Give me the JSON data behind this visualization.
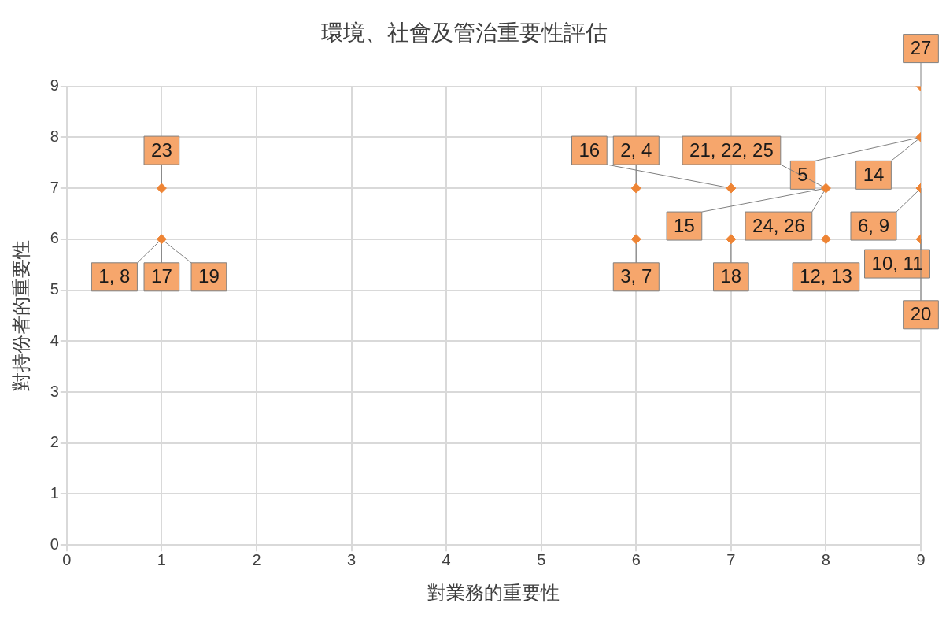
{
  "chart_data": {
    "type": "scatter",
    "title": "環境、社會及管治重要性評估",
    "xlabel": "對業務的重要性",
    "ylabel": "對持份者的重要性",
    "series": [
      {
        "color": "#ee8434",
        "x": [
          1,
          1,
          6,
          6,
          7,
          7,
          8,
          8,
          9,
          9,
          9,
          9
        ],
        "values": [
          7,
          6,
          7,
          6,
          7,
          6,
          7,
          6,
          9,
          8,
          7,
          6
        ]
      }
    ],
    "xlim": [
      0,
      9
    ],
    "ylim": [
      0,
      9
    ],
    "xticks": [
      0,
      1,
      2,
      3,
      4,
      5,
      6,
      7,
      8,
      9
    ],
    "yticks": [
      0,
      1,
      2,
      3,
      4,
      5,
      6,
      7,
      8,
      9
    ],
    "grid": true,
    "legend": false,
    "marker": "diamond",
    "annotations": [
      {
        "text": "27",
        "x": 9,
        "y": 9
      },
      {
        "text": "23",
        "x": 1,
        "y": 7
      },
      {
        "text": "14",
        "x": 9,
        "y": 8
      },
      {
        "text": "5",
        "x": 9,
        "y": 8
      },
      {
        "text": "21, 22, 25",
        "x": 8,
        "y": 7
      },
      {
        "text": "6, 9",
        "x": 9,
        "y": 7
      },
      {
        "text": "2, 4",
        "x": 6,
        "y": 7
      },
      {
        "text": "16",
        "x": 7,
        "y": 7
      },
      {
        "text": "24, 26",
        "x": 8,
        "y": 7
      },
      {
        "text": "15",
        "x": 8,
        "y": 7
      },
      {
        "text": "10, 11",
        "x": 9,
        "y": 7
      },
      {
        "text": "17",
        "x": 1,
        "y": 6
      },
      {
        "text": "19",
        "x": 1,
        "y": 6
      },
      {
        "text": "1, 8",
        "x": 1,
        "y": 6
      },
      {
        "text": "3, 7",
        "x": 6,
        "y": 6
      },
      {
        "text": "18",
        "x": 7,
        "y": 6
      },
      {
        "text": "12, 13",
        "x": 8,
        "y": 6
      },
      {
        "text": "20",
        "x": 9,
        "y": 6
      }
    ]
  }
}
